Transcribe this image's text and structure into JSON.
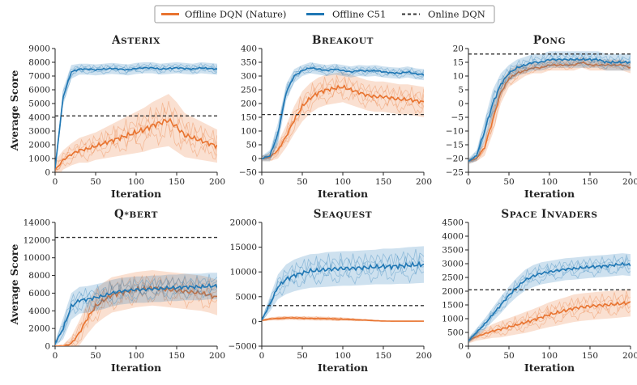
{
  "colors": {
    "dqn": "#e8732f",
    "c51": "#1f77b4",
    "online": "#333333"
  },
  "legend": {
    "items": [
      {
        "key": "dqn",
        "label": "Offline DQN (Nature)",
        "style": "solid"
      },
      {
        "key": "c51",
        "label": "Offline C51",
        "style": "solid"
      },
      {
        "key": "online",
        "label": "Online DQN",
        "style": "dashed"
      }
    ]
  },
  "chart_data": [
    {
      "type": "line",
      "title": "Asterix",
      "xlabel": "Iteration",
      "ylabel": "Average Score",
      "xlim": [
        0,
        200
      ],
      "ylim": [
        0,
        9000
      ],
      "xticks": [
        0,
        50,
        100,
        150,
        200
      ],
      "yticks": [
        0,
        1000,
        2000,
        3000,
        4000,
        5000,
        6000,
        7000,
        8000,
        9000
      ],
      "x": [
        0,
        10,
        20,
        30,
        40,
        50,
        60,
        70,
        80,
        90,
        100,
        110,
        120,
        130,
        140,
        150,
        160,
        170,
        180,
        190,
        200
      ],
      "series": [
        {
          "name": "Offline DQN (Nature)",
          "values": [
            150,
            900,
            1300,
            1600,
            1700,
            1900,
            2100,
            2300,
            2500,
            2700,
            2900,
            3100,
            3400,
            3600,
            3800,
            3300,
            2700,
            2500,
            2300,
            2100,
            1900
          ],
          "band": [
            700,
            700,
            800,
            900,
            1000,
            1000,
            1100,
            1200,
            1300,
            1400,
            1500,
            1600,
            1700,
            1800,
            1900,
            1800,
            1600,
            1500,
            1400,
            1300,
            1200
          ]
        },
        {
          "name": "Offline C51",
          "values": [
            300,
            5500,
            7300,
            7500,
            7500,
            7450,
            7500,
            7550,
            7500,
            7450,
            7550,
            7600,
            7600,
            7500,
            7550,
            7600,
            7550,
            7500,
            7600,
            7550,
            7500
          ],
          "band": [
            300,
            600,
            500,
            400,
            400,
            400,
            400,
            400,
            400,
            400,
            400,
            400,
            400,
            400,
            400,
            400,
            400,
            400,
            400,
            400,
            400
          ]
        }
      ],
      "online": 4100
    },
    {
      "type": "line",
      "title": "Breakout",
      "xlabel": "Iteration",
      "ylabel": "",
      "xlim": [
        0,
        200
      ],
      "ylim": [
        -50,
        400
      ],
      "xticks": [
        0,
        50,
        100,
        150,
        200
      ],
      "yticks": [
        -50,
        0,
        50,
        100,
        150,
        200,
        250,
        300,
        350,
        400
      ],
      "x": [
        0,
        10,
        20,
        30,
        40,
        50,
        60,
        70,
        80,
        90,
        100,
        110,
        120,
        130,
        140,
        150,
        160,
        170,
        180,
        190,
        200
      ],
      "series": [
        {
          "name": "Offline DQN (Nature)",
          "values": [
            0,
            5,
            30,
            80,
            140,
            190,
            220,
            240,
            250,
            255,
            260,
            250,
            240,
            230,
            225,
            225,
            220,
            215,
            215,
            210,
            205
          ],
          "band": [
            10,
            15,
            30,
            40,
            50,
            55,
            55,
            55,
            55,
            55,
            55,
            55,
            55,
            55,
            55,
            55,
            55,
            55,
            55,
            55,
            55
          ]
        },
        {
          "name": "Offline C51",
          "values": [
            0,
            10,
            90,
            240,
            300,
            320,
            330,
            325,
            320,
            325,
            320,
            315,
            320,
            318,
            320,
            315,
            312,
            310,
            315,
            308,
            305
          ],
          "band": [
            10,
            20,
            40,
            30,
            25,
            20,
            20,
            20,
            20,
            20,
            20,
            20,
            20,
            20,
            20,
            20,
            20,
            20,
            20,
            20,
            20
          ]
        }
      ],
      "online": 160
    },
    {
      "type": "line",
      "title": "Pong",
      "xlabel": "Iteration",
      "ylabel": "",
      "xlim": [
        0,
        200
      ],
      "ylim": [
        -25,
        20
      ],
      "xticks": [
        0,
        50,
        100,
        150,
        200
      ],
      "yticks": [
        -25,
        -20,
        -15,
        -10,
        -5,
        0,
        5,
        10,
        15,
        20
      ],
      "x": [
        0,
        10,
        20,
        30,
        40,
        50,
        60,
        70,
        80,
        90,
        100,
        110,
        120,
        130,
        140,
        150,
        160,
        170,
        180,
        190,
        200
      ],
      "series": [
        {
          "name": "Offline DQN (Nature)",
          "values": [
            -21,
            -20,
            -16,
            -6,
            4,
            9,
            11,
            12,
            13,
            13,
            14,
            14,
            14,
            14,
            15,
            14,
            14,
            14,
            14,
            14,
            13
          ],
          "band": [
            1,
            1,
            3,
            5,
            4,
            3,
            3,
            2,
            2,
            2,
            2,
            2,
            2,
            2,
            2,
            2,
            2,
            2,
            2,
            2,
            2
          ]
        },
        {
          "name": "Offline C51",
          "values": [
            -21,
            -19,
            -10,
            0,
            7,
            11,
            13,
            14,
            15,
            15,
            16,
            16,
            16,
            16,
            16,
            16,
            16,
            15,
            15,
            15,
            15
          ],
          "band": [
            1,
            2,
            4,
            5,
            4,
            3,
            3,
            3,
            3,
            3,
            3,
            3,
            3,
            3,
            3,
            3,
            3,
            3,
            3,
            3,
            3
          ]
        }
      ],
      "online": 18
    },
    {
      "type": "line",
      "title": "Q*Bert",
      "xlabel": "Iteration",
      "ylabel": "Average Score",
      "xlim": [
        0,
        200
      ],
      "ylim": [
        0,
        14000
      ],
      "xticks": [
        0,
        50,
        100,
        150,
        200
      ],
      "yticks": [
        0,
        2000,
        4000,
        6000,
        8000,
        10000,
        12000,
        14000
      ],
      "x": [
        0,
        10,
        20,
        30,
        40,
        50,
        60,
        70,
        80,
        90,
        100,
        110,
        120,
        130,
        140,
        150,
        160,
        170,
        180,
        190,
        200
      ],
      "series": [
        {
          "name": "Offline DQN (Nature)",
          "values": [
            0,
            0,
            300,
            1500,
            3200,
            4500,
            5200,
            5800,
            6000,
            6200,
            6400,
            6500,
            6600,
            6500,
            6400,
            6300,
            6200,
            6100,
            6000,
            5800,
            5500
          ],
          "band": [
            100,
            200,
            800,
            1400,
            1800,
            2000,
            2000,
            2000,
            2000,
            2000,
            2000,
            2000,
            2000,
            2000,
            2000,
            2000,
            2000,
            2000,
            2000,
            2000,
            2000
          ]
        },
        {
          "name": "Offline C51",
          "values": [
            300,
            2000,
            4500,
            5200,
            5300,
            5500,
            5700,
            6000,
            6200,
            6300,
            6400,
            6400,
            6500,
            6500,
            6600,
            6600,
            6700,
            6700,
            6700,
            6800,
            6800
          ],
          "band": [
            300,
            1200,
            1500,
            1500,
            1500,
            1500,
            1500,
            1500,
            1500,
            1500,
            1500,
            1500,
            1500,
            1500,
            1500,
            1500,
            1500,
            1500,
            1500,
            1500,
            1500
          ]
        }
      ],
      "online": 12300
    },
    {
      "type": "line",
      "title": "Seaquest",
      "xlabel": "Iteration",
      "ylabel": "",
      "xlim": [
        0,
        200
      ],
      "ylim": [
        -5000,
        20000
      ],
      "xticks": [
        0,
        50,
        100,
        150,
        200
      ],
      "yticks": [
        -5000,
        0,
        5000,
        10000,
        15000,
        20000
      ],
      "x": [
        0,
        10,
        20,
        30,
        40,
        50,
        60,
        70,
        80,
        90,
        100,
        110,
        120,
        130,
        140,
        150,
        160,
        170,
        180,
        190,
        200
      ],
      "series": [
        {
          "name": "Offline DQN (Nature)",
          "values": [
            200,
            500,
            600,
            700,
            700,
            650,
            600,
            600,
            550,
            500,
            450,
            400,
            300,
            250,
            150,
            80,
            50,
            50,
            50,
            50,
            50
          ],
          "band": [
            200,
            300,
            400,
            400,
            400,
            400,
            400,
            400,
            400,
            400,
            350,
            300,
            250,
            200,
            150,
            100,
            50,
            50,
            50,
            50,
            50
          ]
        },
        {
          "name": "Offline C51",
          "values": [
            300,
            3500,
            7000,
            8500,
            9300,
            9800,
            10200,
            10300,
            10500,
            10600,
            10700,
            10700,
            10800,
            10900,
            11000,
            11100,
            11100,
            11200,
            11300,
            11400,
            11500
          ],
          "band": [
            300,
            1500,
            2500,
            3000,
            3200,
            3300,
            3400,
            3400,
            3500,
            3500,
            3500,
            3500,
            3500,
            3500,
            3500,
            3600,
            3600,
            3600,
            3700,
            3700,
            3700
          ]
        }
      ],
      "online": 3200
    },
    {
      "type": "line",
      "title": "Space Invaders",
      "xlabel": "Iteration",
      "ylabel": "",
      "xlim": [
        0,
        200
      ],
      "ylim": [
        0,
        4500
      ],
      "xticks": [
        0,
        50,
        100,
        150,
        200
      ],
      "yticks": [
        0,
        500,
        1000,
        1500,
        2000,
        2500,
        3000,
        3500,
        4000,
        4500
      ],
      "x": [
        0,
        10,
        20,
        30,
        40,
        50,
        60,
        70,
        80,
        90,
        100,
        110,
        120,
        130,
        140,
        150,
        160,
        170,
        180,
        190,
        200
      ],
      "series": [
        {
          "name": "Offline DQN (Nature)",
          "values": [
            200,
            350,
            450,
            550,
            620,
            700,
            780,
            860,
            950,
            1050,
            1150,
            1220,
            1300,
            1380,
            1420,
            1450,
            1480,
            1500,
            1520,
            1550,
            1580
          ],
          "band": [
            100,
            150,
            200,
            250,
            300,
            320,
            350,
            380,
            400,
            420,
            450,
            470,
            480,
            500,
            500,
            500,
            500,
            500,
            500,
            500,
            500
          ]
        },
        {
          "name": "Offline C51",
          "values": [
            200,
            500,
            800,
            1150,
            1500,
            1850,
            2150,
            2400,
            2550,
            2650,
            2700,
            2750,
            2800,
            2820,
            2850,
            2880,
            2900,
            2920,
            2950,
            2980,
            2950
          ],
          "band": [
            100,
            150,
            200,
            250,
            300,
            320,
            350,
            380,
            400,
            400,
            400,
            400,
            400,
            400,
            400,
            400,
            400,
            400,
            400,
            400,
            400
          ]
        }
      ],
      "online": 2050
    }
  ]
}
